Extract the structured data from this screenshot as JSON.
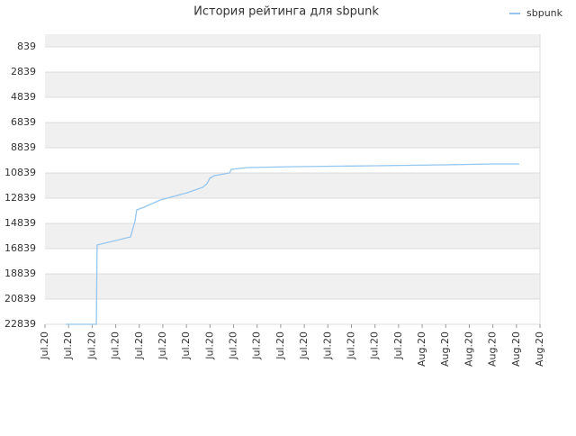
{
  "chart_data": {
    "type": "line",
    "title": "История рейтинга для sbpunk",
    "x": [
      0.88,
      2.18,
      2.21,
      3.63,
      3.82,
      3.89,
      4.2,
      4.89,
      6.03,
      6.68,
      6.87,
      6.99,
      7.18,
      7.83,
      7.9,
      8.59,
      10.61,
      14.05,
      16.88,
      19.01,
      20.12
    ],
    "series": [
      {
        "name": "sbpunk",
        "color": "#94c6f0",
        "values": [
          22839,
          22839,
          16554,
          15911,
          14625,
          13768,
          13554,
          12982,
          12411,
          11982,
          11696,
          11268,
          11054,
          10839,
          10554,
          10411,
          10339,
          10268,
          10196,
          10125,
          10125
        ]
      }
    ],
    "xlim": [
      0,
      21
    ],
    "xticks": [
      {
        "value": 0,
        "label": "Jul.20"
      },
      {
        "value": 1,
        "label": "Jul.20"
      },
      {
        "value": 2,
        "label": "Jul.20"
      },
      {
        "value": 3,
        "label": "Jul.20"
      },
      {
        "value": 4,
        "label": "Jul.20"
      },
      {
        "value": 5,
        "label": "Jul.20"
      },
      {
        "value": 6,
        "label": "Jul.20"
      },
      {
        "value": 7,
        "label": "Jul.20"
      },
      {
        "value": 8,
        "label": "Jul.20"
      },
      {
        "value": 9,
        "label": "Jul.20"
      },
      {
        "value": 10,
        "label": "Jul.20"
      },
      {
        "value": 11,
        "label": "Jul.20"
      },
      {
        "value": 12,
        "label": "Jul.20"
      },
      {
        "value": 13,
        "label": "Jul.20"
      },
      {
        "value": 14,
        "label": "Jul.20"
      },
      {
        "value": 15,
        "label": "Jul.20"
      },
      {
        "value": 16,
        "label": "Aug.20"
      },
      {
        "value": 17,
        "label": "Aug.20"
      },
      {
        "value": 18,
        "label": "Aug.20"
      },
      {
        "value": 19,
        "label": "Aug.20"
      },
      {
        "value": 20,
        "label": "Aug.20"
      },
      {
        "value": 21,
        "label": "Aug.20"
      }
    ],
    "ylim": [
      22839,
      -161
    ],
    "yticks": [
      839,
      2839,
      4839,
      6839,
      8839,
      10839,
      12839,
      14839,
      16839,
      18839,
      20839,
      22839
    ],
    "grid": true,
    "legend": "top-right"
  }
}
